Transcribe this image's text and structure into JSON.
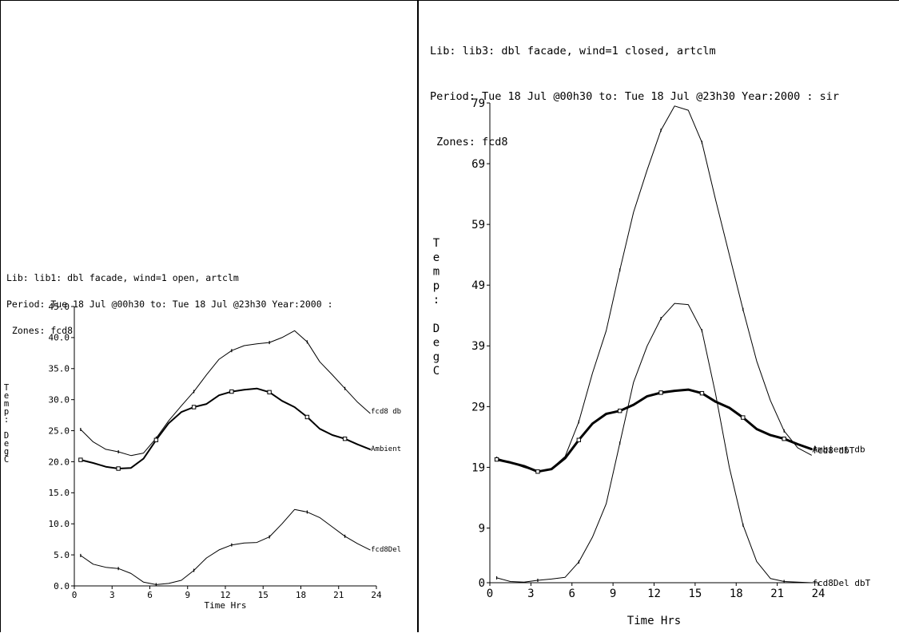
{
  "charts": [
    {
      "header": {
        "lib": "Lib: lib1: dbl facade, wind=1 open, artclm",
        "period": "Period: Tue 18 Jul @00h30 to: Tue 18 Jul @23h30 Year:2000 :",
        "zones": " Zones: fcd8"
      },
      "ylabel_chars": [
        "T",
        "e",
        "m",
        "p",
        ":",
        " ",
        "D",
        "e",
        "g",
        "C"
      ]
    },
    {
      "header": {
        "lib": "Lib: lib3: dbl facade, wind=1 closed, artclm",
        "period": "Period: Tue 18 Jul @00h30 to: Tue 18 Jul @23h30 Year:2000 : sir",
        "zones": " Zones: fcd8"
      },
      "ylabel_chars": [
        "T",
        "e",
        "m",
        "p",
        ":",
        " ",
        "D",
        "e",
        "g",
        "C"
      ]
    }
  ],
  "chart_data": [
    {
      "type": "line",
      "xlabel": "Time Hrs",
      "ylabel": "Temp: DegC",
      "xlim": [
        0,
        24
      ],
      "ylim": [
        0,
        45
      ],
      "xticks": [
        "0",
        "3",
        "6",
        "9",
        "12",
        "15",
        "18",
        "21",
        "24"
      ],
      "yticks": [
        "0.0",
        "5.0",
        "10.0",
        "15.0",
        "20.0",
        "25.0",
        "30.0",
        "35.0",
        "40.0",
        "45.0"
      ],
      "series": [
        {
          "name": "fcd8 db",
          "x": [
            0.5,
            1.5,
            2.5,
            3.5,
            4.5,
            5.5,
            6.5,
            7.5,
            8.5,
            9.5,
            10.5,
            11.5,
            12.5,
            13.5,
            14.5,
            15.5,
            16.5,
            17.5,
            18.5,
            19.5,
            20.5,
            21.5,
            22.5,
            23.5
          ],
          "y": [
            25.2,
            23.2,
            22.0,
            21.6,
            21.0,
            21.4,
            23.8,
            26.6,
            29.0,
            31.3,
            34.0,
            36.5,
            37.9,
            38.7,
            39.0,
            39.2,
            40.0,
            41.1,
            39.3,
            36.1,
            34.0,
            31.8,
            29.6,
            27.8
          ]
        },
        {
          "name": "Ambient",
          "x": [
            0.5,
            1.5,
            2.5,
            3.5,
            4.5,
            5.5,
            6.5,
            7.5,
            8.5,
            9.5,
            10.5,
            11.5,
            12.5,
            13.5,
            14.5,
            15.5,
            16.5,
            17.5,
            18.5,
            19.5,
            20.5,
            21.5,
            22.5,
            23.5
          ],
          "y": [
            20.3,
            19.8,
            19.2,
            18.9,
            19.0,
            20.5,
            23.5,
            26.2,
            28.0,
            28.8,
            29.3,
            30.7,
            31.3,
            31.6,
            31.8,
            31.2,
            29.8,
            28.8,
            27.2,
            25.3,
            24.3,
            23.7,
            22.8,
            22.0
          ]
        },
        {
          "name": "fcd8Del",
          "x": [
            0.5,
            1.5,
            2.5,
            3.5,
            4.5,
            5.5,
            6.5,
            7.5,
            8.5,
            9.5,
            10.5,
            11.5,
            12.5,
            13.5,
            14.5,
            15.5,
            16.5,
            17.5,
            18.5,
            19.5,
            20.5,
            21.5,
            22.5,
            23.5
          ],
          "y": [
            4.9,
            3.5,
            3.0,
            2.8,
            2.0,
            0.6,
            0.2,
            0.4,
            0.9,
            2.5,
            4.5,
            5.8,
            6.6,
            6.9,
            7.0,
            7.9,
            10.0,
            12.3,
            11.9,
            11.0,
            9.5,
            8.0,
            6.8,
            5.8
          ]
        }
      ]
    },
    {
      "type": "line",
      "xlabel": "Time Hrs",
      "ylabel": "Temp: DegC",
      "xlim": [
        0,
        24
      ],
      "ylim": [
        0,
        79
      ],
      "xticks": [
        "0",
        "3",
        "6",
        "9",
        "12",
        "15",
        "18",
        "21",
        "24"
      ],
      "yticks": [
        "0",
        "9",
        "19",
        "29",
        "39",
        "49",
        "59",
        "69",
        "79"
      ],
      "series": [
        {
          "name": "fcd8 dbT",
          "x": [
            0.5,
            1.5,
            2.5,
            3.5,
            4.5,
            5.5,
            6.5,
            7.5,
            8.5,
            9.5,
            10.5,
            11.5,
            12.5,
            13.5,
            14.5,
            15.5,
            16.5,
            17.5,
            18.5,
            19.5,
            20.5,
            21.5,
            22.5,
            23.5
          ],
          "y": [
            20.5,
            19.8,
            19.0,
            18.3,
            18.8,
            20.8,
            26.5,
            34.5,
            41.5,
            51.5,
            61.0,
            68.0,
            74.5,
            78.5,
            77.8,
            72.5,
            63.0,
            54.0,
            45.0,
            36.5,
            30.0,
            25.0,
            22.2,
            21.0
          ]
        },
        {
          "name": "Ambient db",
          "x": [
            0.5,
            1.5,
            2.5,
            3.5,
            4.5,
            5.5,
            6.5,
            7.5,
            8.5,
            9.5,
            10.5,
            11.5,
            12.5,
            13.5,
            14.5,
            15.5,
            16.5,
            17.5,
            18.5,
            19.5,
            20.5,
            21.5,
            22.5,
            23.5
          ],
          "y": [
            20.3,
            19.8,
            19.2,
            18.3,
            18.7,
            20.5,
            23.5,
            26.2,
            27.8,
            28.3,
            29.3,
            30.7,
            31.3,
            31.6,
            31.8,
            31.2,
            29.8,
            28.8,
            27.2,
            25.3,
            24.3,
            23.7,
            22.8,
            22.0
          ]
        },
        {
          "name": "fcd8Del dbT",
          "x": [
            0.5,
            1.5,
            2.5,
            3.5,
            4.5,
            5.5,
            6.5,
            7.5,
            8.5,
            9.5,
            10.5,
            11.5,
            12.5,
            13.5,
            14.5,
            15.5,
            16.5,
            17.5,
            18.5,
            19.5,
            20.5,
            21.5,
            22.5,
            23.5
          ],
          "y": [
            0.8,
            0.2,
            0.1,
            0.4,
            0.6,
            0.9,
            3.4,
            7.5,
            13.0,
            23.0,
            33.0,
            39.0,
            43.5,
            46.0,
            45.8,
            41.5,
            31.0,
            19.0,
            9.5,
            3.5,
            0.7,
            0.2,
            0.1,
            0.0
          ]
        }
      ]
    }
  ]
}
